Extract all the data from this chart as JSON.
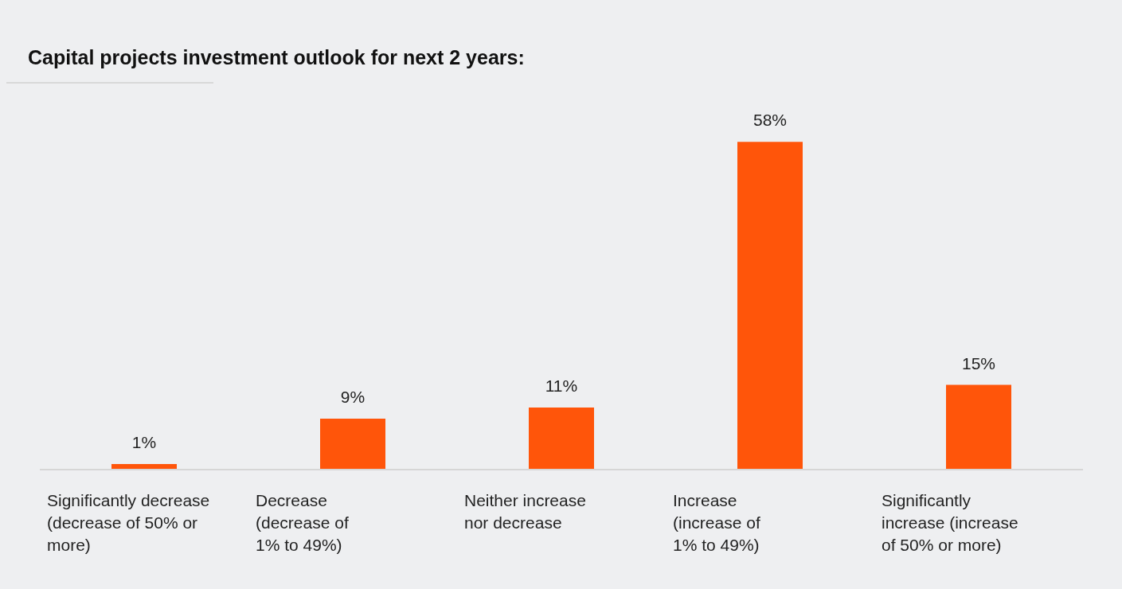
{
  "chart_data": {
    "type": "bar",
    "title": "Capital projects investment outlook for next 2 years:",
    "categories": [
      "Significantly decrease\n(decrease of 50% or\nmore)",
      "Decrease\n(decrease of\n1% to 49%)",
      "Neither increase\nnor decrease",
      "Increase\n(increase of\n1% to 49%)",
      "Significantly\nincrease (increase\nof 50% or more)"
    ],
    "values": [
      1,
      9,
      11,
      58,
      15
    ],
    "value_labels": [
      "1%",
      "9%",
      "11%",
      "58%",
      "15%"
    ],
    "color": "#ff550a",
    "grid": false,
    "legend": false
  }
}
